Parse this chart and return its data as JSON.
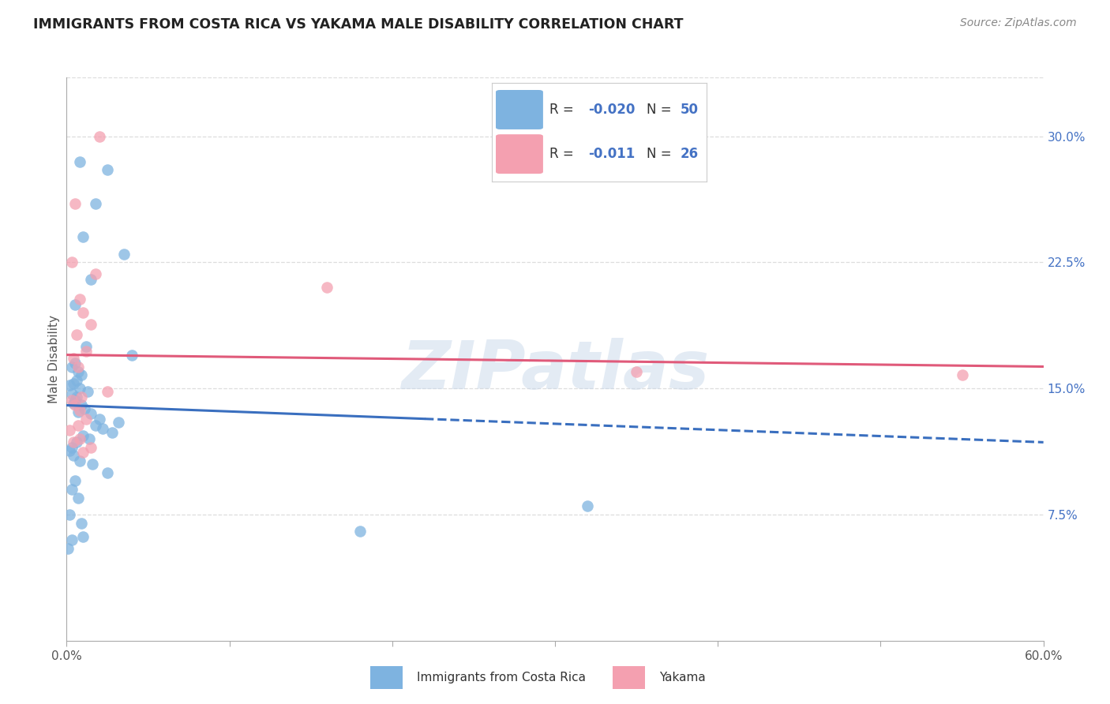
{
  "title": "IMMIGRANTS FROM COSTA RICA VS YAKAMA MALE DISABILITY CORRELATION CHART",
  "source": "Source: ZipAtlas.com",
  "ylabel": "Male Disability",
  "right_yticks": [
    "7.5%",
    "15.0%",
    "22.5%",
    "30.0%"
  ],
  "right_ytick_vals": [
    0.075,
    0.15,
    0.225,
    0.3
  ],
  "xlim": [
    0.0,
    0.6
  ],
  "ylim": [
    0.0,
    0.335
  ],
  "watermark": "ZIPatlas",
  "series1_color": "#7eb3e0",
  "series2_color": "#f4a0b0",
  "line1_color": "#3a6fbf",
  "line2_color": "#e05a7a",
  "blue_points_x": [
    0.008,
    0.025,
    0.018,
    0.01,
    0.035,
    0.015,
    0.005,
    0.012,
    0.04,
    0.005,
    0.003,
    0.007,
    0.009,
    0.006,
    0.004,
    0.002,
    0.008,
    0.013,
    0.003,
    0.006,
    0.005,
    0.004,
    0.009,
    0.011,
    0.007,
    0.015,
    0.02,
    0.032,
    0.018,
    0.022,
    0.028,
    0.01,
    0.014,
    0.006,
    0.003,
    0.002,
    0.004,
    0.008,
    0.016,
    0.025,
    0.005,
    0.003,
    0.007,
    0.32,
    0.002,
    0.009,
    0.18,
    0.01,
    0.003,
    0.001
  ],
  "blue_points_y": [
    0.285,
    0.28,
    0.26,
    0.24,
    0.23,
    0.215,
    0.2,
    0.175,
    0.17,
    0.165,
    0.163,
    0.16,
    0.158,
    0.155,
    0.153,
    0.152,
    0.15,
    0.148,
    0.147,
    0.145,
    0.143,
    0.141,
    0.14,
    0.138,
    0.136,
    0.135,
    0.132,
    0.13,
    0.128,
    0.126,
    0.124,
    0.122,
    0.12,
    0.118,
    0.115,
    0.113,
    0.11,
    0.107,
    0.105,
    0.1,
    0.095,
    0.09,
    0.085,
    0.08,
    0.075,
    0.07,
    0.065,
    0.062,
    0.06,
    0.055
  ],
  "pink_points_x": [
    0.02,
    0.005,
    0.003,
    0.018,
    0.16,
    0.008,
    0.01,
    0.015,
    0.006,
    0.012,
    0.004,
    0.007,
    0.025,
    0.009,
    0.003,
    0.005,
    0.008,
    0.012,
    0.007,
    0.35,
    0.002,
    0.008,
    0.004,
    0.55,
    0.015,
    0.01
  ],
  "pink_points_y": [
    0.3,
    0.26,
    0.225,
    0.218,
    0.21,
    0.203,
    0.195,
    0.188,
    0.182,
    0.172,
    0.168,
    0.163,
    0.148,
    0.145,
    0.143,
    0.14,
    0.137,
    0.132,
    0.128,
    0.16,
    0.125,
    0.12,
    0.118,
    0.158,
    0.115,
    0.112
  ],
  "blue_line_x": [
    0.0,
    0.6
  ],
  "blue_line_y": [
    0.14,
    0.118
  ],
  "blue_line_solid_end": 0.22,
  "pink_line_x": [
    0.0,
    0.6
  ],
  "pink_line_y": [
    0.17,
    0.163
  ],
  "grid_color": "#dddddd",
  "ytick_color": "#4472c4",
  "legend_text_color": "#4472c4",
  "legend_r1": "R = -0.020",
  "legend_n1": "N = 50",
  "legend_r2": "R =  -0.011",
  "legend_n2": "N = 26"
}
